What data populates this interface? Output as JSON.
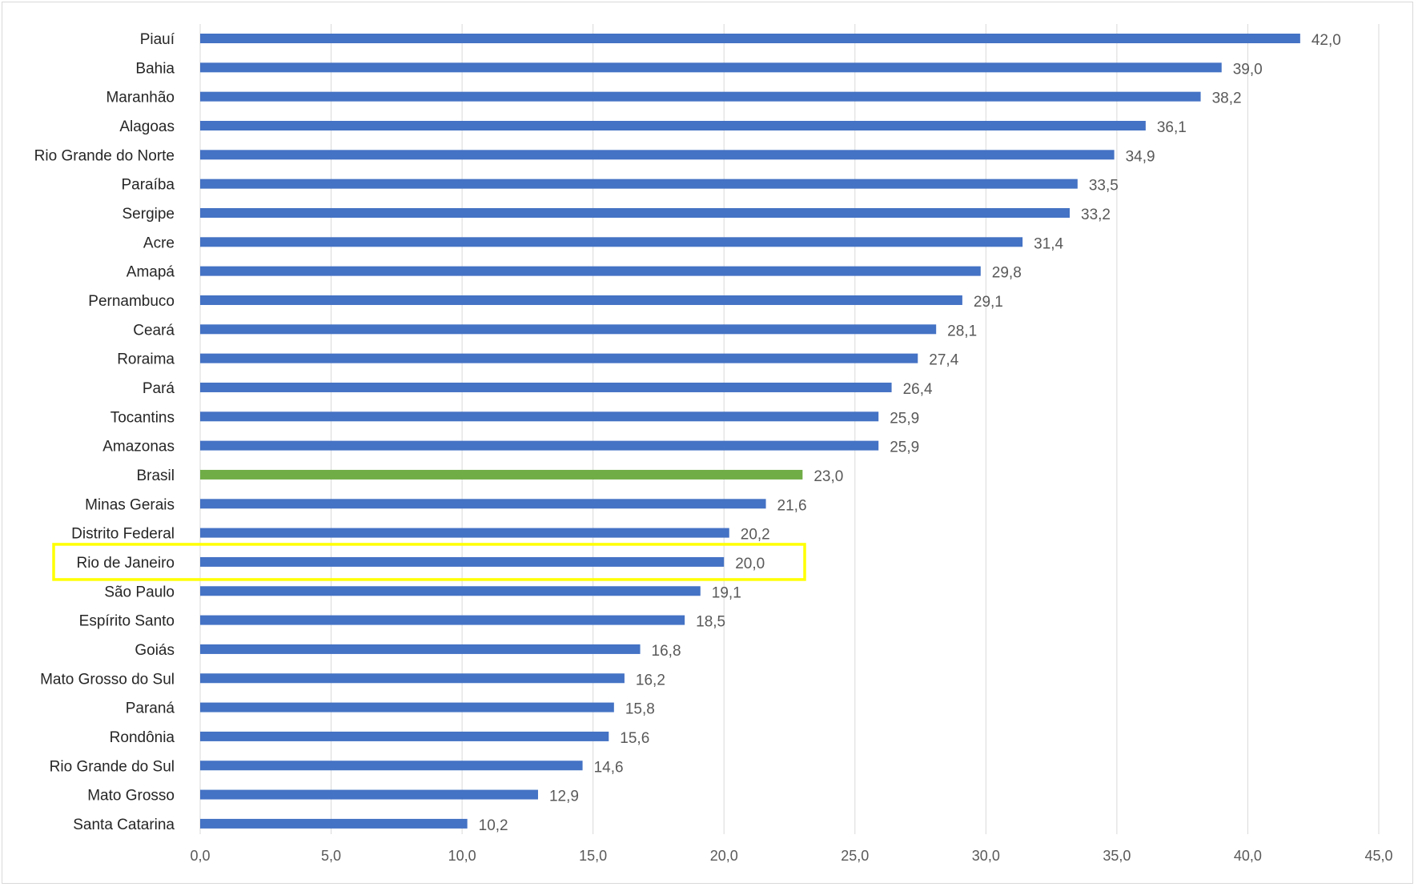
{
  "chart_data": {
    "type": "bar",
    "orientation": "horizontal",
    "categories": [
      "Piauí",
      "Bahia",
      "Maranhão",
      "Alagoas",
      "Rio Grande do Norte",
      "Paraíba",
      "Sergipe",
      "Acre",
      "Amapá",
      "Pernambuco",
      "Ceará",
      "Roraima",
      "Pará",
      "Tocantins",
      "Amazonas",
      "Brasil",
      "Minas Gerais",
      "Distrito Federal",
      "Rio de Janeiro",
      "São Paulo",
      "Espírito Santo",
      "Goiás",
      "Mato Grosso do Sul",
      "Paraná",
      "Rondônia",
      "Rio Grande do Sul",
      "Mato Grosso",
      "Santa Catarina"
    ],
    "values": [
      42.0,
      39.0,
      38.2,
      36.1,
      34.9,
      33.5,
      33.2,
      31.4,
      29.8,
      29.1,
      28.1,
      27.4,
      26.4,
      25.9,
      25.9,
      23.0,
      21.6,
      20.2,
      20.0,
      19.1,
      18.5,
      16.8,
      16.2,
      15.8,
      15.6,
      14.6,
      12.9,
      10.2
    ],
    "value_labels": [
      "42,0",
      "39,0",
      "38,2",
      "36,1",
      "34,9",
      "33,5",
      "33,2",
      "31,4",
      "29,8",
      "29,1",
      "28,1",
      "27,4",
      "26,4",
      "25,9",
      "25,9",
      "23,0",
      "21,6",
      "20,2",
      "20,0",
      "19,1",
      "18,5",
      "16,8",
      "16,2",
      "15,8",
      "15,6",
      "14,6",
      "12,9",
      "10,2"
    ],
    "xlim": [
      0,
      45
    ],
    "x_ticks": [
      "0,0",
      "5,0",
      "10,0",
      "15,0",
      "20,0",
      "25,0",
      "30,0",
      "35,0",
      "40,0",
      "45,0"
    ],
    "grid": "vertical",
    "bar_color": "#4472c4",
    "highlight_bar": {
      "category": "Brasil",
      "color": "#70ad47"
    },
    "highlight_box": {
      "category": "Rio de Janeiro",
      "color": "#ffff00"
    },
    "title": "",
    "xlabel": "",
    "ylabel": ""
  }
}
